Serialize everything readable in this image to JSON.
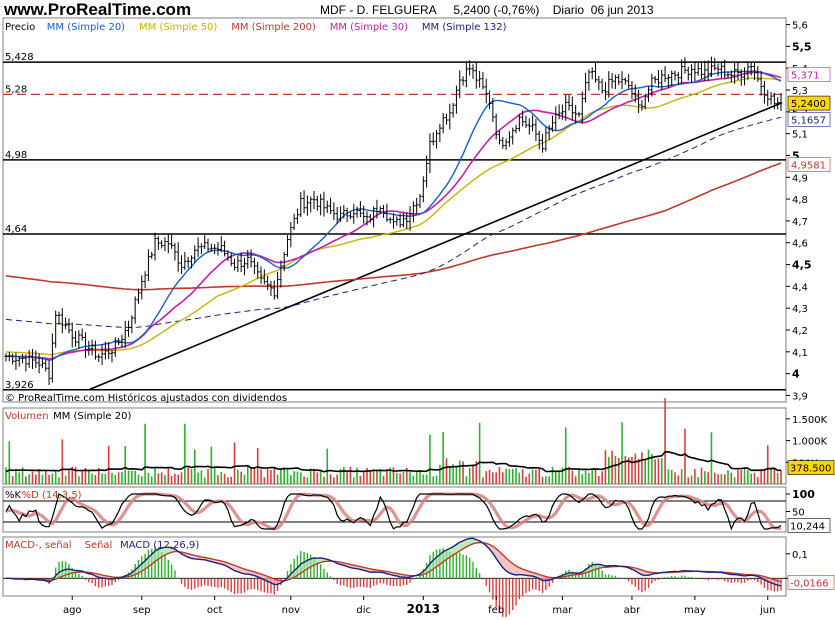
{
  "header": {
    "site": "www.ProRealTime.com",
    "ticker": "MDF - D. FELGUERA",
    "price_text": "5,2400 (-0,76%)",
    "period": "Diario",
    "date": "06 jun 2013"
  },
  "legends": {
    "price": [
      {
        "text": "Precio",
        "color": "#000000"
      },
      {
        "text": "MM (Simple 20)",
        "color": "#1a5fc9"
      },
      {
        "text": "MM (Simple 50)",
        "color": "#c8b400"
      },
      {
        "text": "MM (Simple 200)",
        "color": "#c0392b"
      },
      {
        "text": "MM (Simple 30)",
        "color": "#c81eaa"
      },
      {
        "text": "MM (Simple 132)",
        "color": "#1a237e"
      }
    ],
    "volume": [
      {
        "text": "Volumen",
        "color": "#c0392b"
      },
      {
        "text": "MM (Simple 20)",
        "color": "#000000"
      }
    ],
    "stoch": [
      {
        "text": "%K",
        "color": "#000000"
      },
      {
        "text": "%D (14,3,5)",
        "color": "#c0392b"
      }
    ],
    "macd": [
      {
        "text": "MACD-, señal",
        "color": "#c0392b"
      },
      {
        "text": "Señal",
        "color": "#c0392b"
      },
      {
        "text": "MACD (12,26,9)",
        "color": "#1a237e"
      }
    ]
  },
  "footer_note": "© ProRealTime.com  Históricos ajustados con dividendos",
  "price_axis": {
    "ticks": [
      {
        "value": 5.6,
        "label": "5,6"
      },
      {
        "value": 5.5,
        "label": "5,5"
      },
      {
        "value": 5.4,
        "label": "5,4"
      },
      {
        "value": 5.3,
        "label": "5,3"
      },
      {
        "value": 5.2,
        "label": "5,2"
      },
      {
        "value": 5.1,
        "label": "5,1"
      },
      {
        "value": 5.0,
        "label": "5"
      },
      {
        "value": 4.9,
        "label": "4,9"
      },
      {
        "value": 4.8,
        "label": "4,8"
      },
      {
        "value": 4.7,
        "label": "4,7"
      },
      {
        "value": 4.6,
        "label": "4,6"
      },
      {
        "value": 4.5,
        "label": "4,5"
      },
      {
        "value": 4.4,
        "label": "4,4"
      },
      {
        "value": 4.3,
        "label": "4,3"
      },
      {
        "value": 4.2,
        "label": "4,2"
      },
      {
        "value": 4.1,
        "label": "4,1"
      },
      {
        "value": 4.0,
        "label": "4"
      },
      {
        "value": 3.9,
        "label": "3,9"
      }
    ]
  },
  "price_levels": [
    {
      "value": 5.428,
      "label": "5,428",
      "style": "solid"
    },
    {
      "value": 5.28,
      "label": "5,28",
      "style": "dashed"
    },
    {
      "value": 4.98,
      "label": "4,98",
      "style": "solid"
    },
    {
      "value": 4.64,
      "label": "4,64",
      "style": "solid"
    },
    {
      "value": 3.926,
      "label": "3,926",
      "style": "solid"
    }
  ],
  "price_tags": [
    {
      "value": 5.371,
      "label": "5,371",
      "color": "#c81eaa"
    },
    {
      "value": 5.24,
      "label": "5,2400",
      "color": "#000000",
      "bg": "#ffd800"
    },
    {
      "value": 5.1657,
      "label": "5,1657",
      "color": "#1a237e"
    },
    {
      "value": 4.9581,
      "label": "4,9581",
      "color": "#c0392b"
    }
  ],
  "volume_axis": [
    {
      "value": 1500,
      "label": "1.500K"
    },
    {
      "value": 1000,
      "label": "1.000K"
    },
    {
      "value": 500,
      "label": "500K"
    }
  ],
  "volume_tag": {
    "value": 378.5,
    "label": "378.500"
  },
  "stoch_axis": [
    {
      "value": 100,
      "label": "100"
    },
    {
      "value": 50,
      "label": "50"
    }
  ],
  "stoch_tag": {
    "value": 10.244,
    "label": "10,244"
  },
  "macd_axis": [
    {
      "value": 0.1,
      "label": "0,1"
    },
    {
      "value": 0,
      "label": "0"
    }
  ],
  "macd_tag": {
    "value": -0.0166,
    "label": "-0,0166"
  },
  "chart_data": {
    "type": "line",
    "title": "MDF - D. FELGUERA",
    "months": [
      {
        "label": "ago",
        "day": 20
      },
      {
        "label": "sep",
        "day": 41
      },
      {
        "label": "oct",
        "day": 63
      },
      {
        "label": "nov",
        "day": 86
      },
      {
        "label": "dic",
        "day": 108
      },
      {
        "label": "2013",
        "day": 126,
        "bold": true
      },
      {
        "label": "feb",
        "day": 148
      },
      {
        "label": "mar",
        "day": 168
      },
      {
        "label": "abr",
        "day": 189
      },
      {
        "label": "may",
        "day": 208
      },
      {
        "label": "jun",
        "day": 230
      }
    ],
    "ylim": [
      3.87,
      5.63
    ],
    "price_keypoints": [
      [
        0,
        4.08
      ],
      [
        5,
        4.07
      ],
      [
        10,
        4.05
      ],
      [
        13,
        4.0
      ],
      [
        15,
        4.28
      ],
      [
        20,
        4.18
      ],
      [
        28,
        4.08
      ],
      [
        33,
        4.12
      ],
      [
        37,
        4.22
      ],
      [
        41,
        4.43
      ],
      [
        45,
        4.6
      ],
      [
        49,
        4.6
      ],
      [
        53,
        4.5
      ],
      [
        57,
        4.57
      ],
      [
        61,
        4.58
      ],
      [
        65,
        4.57
      ],
      [
        69,
        4.5
      ],
      [
        73,
        4.52
      ],
      [
        77,
        4.42
      ],
      [
        81,
        4.38
      ],
      [
        85,
        4.62
      ],
      [
        89,
        4.78
      ],
      [
        93,
        4.8
      ],
      [
        97,
        4.75
      ],
      [
        101,
        4.72
      ],
      [
        105,
        4.75
      ],
      [
        109,
        4.7
      ],
      [
        113,
        4.78
      ],
      [
        117,
        4.68
      ],
      [
        121,
        4.72
      ],
      [
        125,
        4.82
      ],
      [
        128,
        5.05
      ],
      [
        131,
        5.15
      ],
      [
        134,
        5.2
      ],
      [
        137,
        5.35
      ],
      [
        140,
        5.4
      ],
      [
        143,
        5.33
      ],
      [
        146,
        5.25
      ],
      [
        149,
        5.05
      ],
      [
        152,
        5.1
      ],
      [
        155,
        5.17
      ],
      [
        159,
        5.12
      ],
      [
        162,
        5.05
      ],
      [
        165,
        5.15
      ],
      [
        169,
        5.22
      ],
      [
        173,
        5.18
      ],
      [
        176,
        5.38
      ],
      [
        180,
        5.3
      ],
      [
        184,
        5.35
      ],
      [
        188,
        5.32
      ],
      [
        191,
        5.22
      ],
      [
        195,
        5.33
      ],
      [
        199,
        5.37
      ],
      [
        203,
        5.38
      ],
      [
        207,
        5.4
      ],
      [
        211,
        5.38
      ],
      [
        215,
        5.4
      ],
      [
        219,
        5.37
      ],
      [
        222,
        5.38
      ],
      [
        225,
        5.42
      ],
      [
        227,
        5.35
      ],
      [
        229,
        5.3
      ],
      [
        232,
        5.24
      ]
    ]
  }
}
